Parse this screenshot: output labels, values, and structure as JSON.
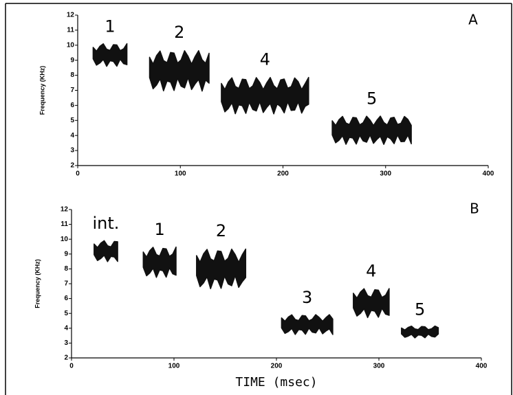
{
  "chart_data": [
    {
      "type": "spectrogram",
      "panel": "A",
      "ylabel": "Frequency (KHz)",
      "xlim": [
        0,
        400
      ],
      "ylim": [
        2,
        12
      ],
      "xticks": [
        0,
        100,
        200,
        300,
        400
      ],
      "yticks": [
        2,
        3,
        4,
        5,
        6,
        7,
        8,
        9,
        10,
        11,
        12
      ],
      "color": "#111111",
      "notes": [
        {
          "label": "1",
          "x": [
            15,
            48
          ],
          "y": [
            8.5,
            10.2
          ]
        },
        {
          "label": "2",
          "x": [
            70,
            128
          ],
          "y": [
            6.8,
            9.8
          ]
        },
        {
          "label": "4",
          "x": [
            140,
            225
          ],
          "y": [
            5.3,
            8.0
          ]
        },
        {
          "label": "5",
          "x": [
            248,
            325
          ],
          "y": [
            3.3,
            5.4
          ]
        }
      ]
    },
    {
      "type": "spectrogram",
      "panel": "B",
      "ylabel": "Frequency (KHz)",
      "xlabel": "TIME (msec)",
      "xlim": [
        0,
        400
      ],
      "ylim": [
        2,
        12
      ],
      "xticks": [
        0,
        100,
        200,
        300,
        400
      ],
      "yticks": [
        2,
        3,
        4,
        5,
        6,
        7,
        8,
        9,
        10,
        11,
        12
      ],
      "color": "#111111",
      "notes": [
        {
          "label": "int.",
          "x": [
            22,
            45
          ],
          "y": [
            8.4,
            10.0
          ]
        },
        {
          "label": "1",
          "x": [
            70,
            102
          ],
          "y": [
            7.3,
            9.6
          ]
        },
        {
          "label": "2",
          "x": [
            122,
            170
          ],
          "y": [
            6.5,
            9.5
          ]
        },
        {
          "label": "3",
          "x": [
            205,
            255
          ],
          "y": [
            3.5,
            5.0
          ]
        },
        {
          "label": "4",
          "x": [
            275,
            310
          ],
          "y": [
            4.6,
            6.8
          ]
        },
        {
          "label": "5",
          "x": [
            322,
            358
          ],
          "y": [
            3.3,
            4.2
          ]
        }
      ]
    }
  ]
}
